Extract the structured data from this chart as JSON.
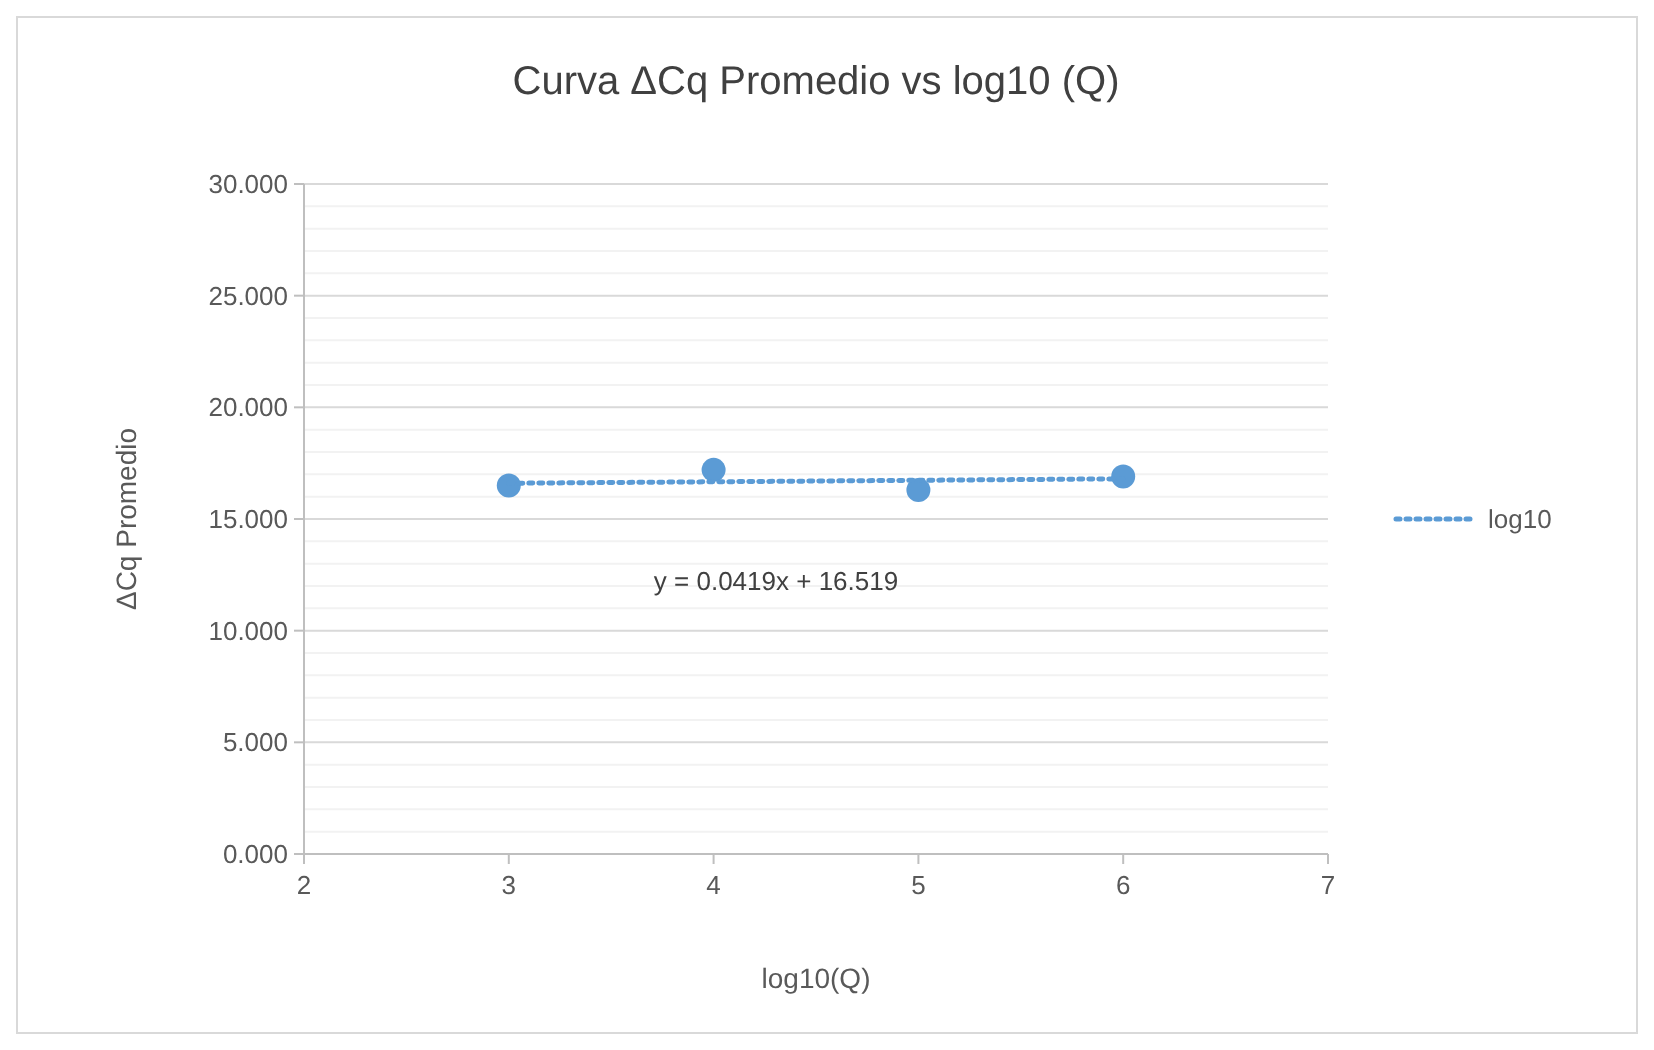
{
  "chart_data": {
    "type": "scatter",
    "title": "Curva ΔCq Promedio vs log10 (Q)",
    "xlabel": "log10(Q)",
    "ylabel": "ΔCq Promedio",
    "x": [
      3,
      4,
      5,
      6
    ],
    "series": [
      {
        "color": "#5b9bd5",
        "values": [
          16.5,
          17.2,
          16.3,
          16.9
        ],
        "marker": "circle"
      },
      {
        "type": "line",
        "name": "log10",
        "color": "#5b9bd5",
        "x": [
          3,
          6
        ],
        "values": [
          16.6,
          16.8
        ],
        "line_style": "dotted",
        "marker": "none"
      }
    ],
    "xlim": [
      2,
      7
    ],
    "xticks": [
      2,
      3,
      4,
      5,
      6,
      7
    ],
    "ylim": [
      0,
      30
    ],
    "yticks": [
      {
        "value": 0,
        "label": "0.000"
      },
      {
        "value": 1,
        "label": null
      },
      {
        "value": 2,
        "label": null
      },
      {
        "value": 3,
        "label": null
      },
      {
        "value": 4,
        "label": null
      },
      {
        "value": 5,
        "label": "5.000"
      },
      {
        "value": 6,
        "label": null
      },
      {
        "value": 7,
        "label": null
      },
      {
        "value": 8,
        "label": null
      },
      {
        "value": 9,
        "label": null
      },
      {
        "value": 10,
        "label": "10.000"
      },
      {
        "value": 11,
        "label": null
      },
      {
        "value": 12,
        "label": null
      },
      {
        "value": 13,
        "label": null
      },
      {
        "value": 14,
        "label": null
      },
      {
        "value": 15,
        "label": "15.000"
      },
      {
        "value": 16,
        "label": null
      },
      {
        "value": 17,
        "label": null
      },
      {
        "value": 18,
        "label": null
      },
      {
        "value": 19,
        "label": null
      },
      {
        "value": 20,
        "label": "20.000"
      },
      {
        "value": 21,
        "label": null
      },
      {
        "value": 22,
        "label": null
      },
      {
        "value": 23,
        "label": null
      },
      {
        "value": 24,
        "label": null
      },
      {
        "value": 25,
        "label": "25.000"
      },
      {
        "value": 26,
        "label": null
      },
      {
        "value": 27,
        "label": null
      },
      {
        "value": 28,
        "label": null
      },
      {
        "value": 29,
        "label": null
      },
      {
        "value": 30,
        "label": "30.000"
      }
    ],
    "grid": "y",
    "legend": "right",
    "annotations": [
      "y = 0.0419x + 16.519"
    ]
  }
}
